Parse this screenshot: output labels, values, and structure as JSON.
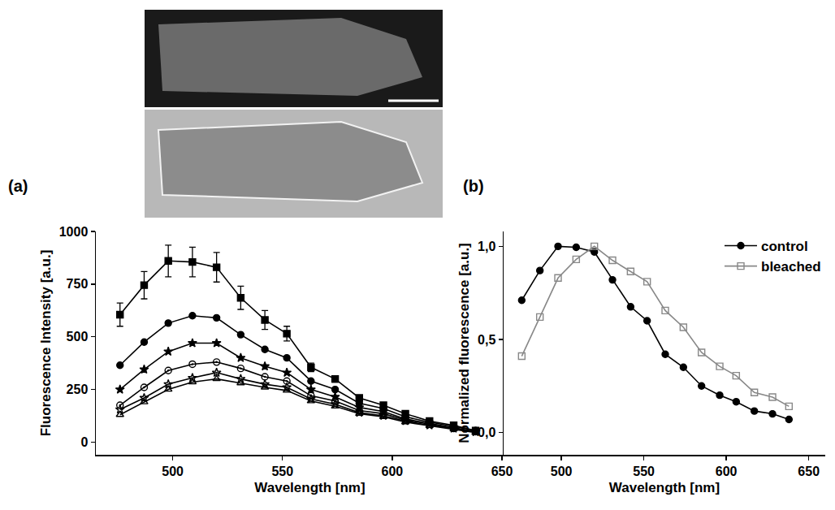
{
  "chart_data": [
    {
      "type": "line",
      "annotations": [
        "(a)"
      ],
      "x_label": "Wavelength [nm]",
      "y_label": "Fluorescence Intensity [a.u.]",
      "x": [
        476,
        487,
        498,
        509,
        520,
        531,
        542,
        552,
        563,
        574,
        585,
        596,
        606,
        617,
        628,
        638
      ],
      "series": [
        {
          "color": "#000000",
          "marker": "square",
          "values": [
            605,
            745,
            860,
            855,
            830,
            685,
            580,
            515,
            355,
            300,
            210,
            175,
            135,
            100,
            80,
            55
          ],
          "errors": [
            55,
            65,
            75,
            70,
            70,
            55,
            45,
            35,
            20,
            15,
            12,
            10,
            8,
            8,
            6,
            6
          ]
        },
        {
          "color": "#000000",
          "marker": "circle",
          "values": [
            365,
            475,
            565,
            600,
            590,
            510,
            440,
            400,
            290,
            250,
            185,
            160,
            120,
            95,
            75,
            55
          ]
        },
        {
          "color": "#000000",
          "marker": "star",
          "values": [
            250,
            345,
            430,
            470,
            470,
            400,
            360,
            330,
            250,
            215,
            165,
            145,
            110,
            90,
            70,
            50
          ]
        },
        {
          "color": "#000000",
          "marker": "circle-open-dot",
          "values": [
            175,
            260,
            340,
            370,
            380,
            350,
            310,
            290,
            220,
            195,
            150,
            135,
            105,
            85,
            65,
            50
          ]
        },
        {
          "color": "#000000",
          "marker": "star-open",
          "values": [
            155,
            210,
            275,
            305,
            330,
            300,
            275,
            260,
            205,
            180,
            140,
            125,
            100,
            80,
            65,
            48
          ]
        },
        {
          "color": "#000000",
          "marker": "triangle-up-open",
          "values": [
            130,
            190,
            250,
            285,
            300,
            280,
            260,
            245,
            195,
            170,
            135,
            120,
            95,
            78,
            62,
            45
          ]
        }
      ],
      "xlim": [
        465,
        660
      ],
      "xticks": [
        500,
        550,
        600,
        650
      ],
      "ylim": [
        -60,
        1000
      ],
      "yticks": [
        0,
        250,
        500,
        750,
        1000
      ],
      "grid": false
    },
    {
      "type": "line",
      "annotations": [
        "(b)"
      ],
      "x_label": "Wavelength [nm]",
      "y_label": "Normalized fluorescence [a.u.]",
      "x": [
        476,
        487,
        498,
        509,
        520,
        531,
        542,
        552,
        563,
        574,
        585,
        596,
        606,
        617,
        628,
        638
      ],
      "series": [
        {
          "name": "control",
          "color": "#000000",
          "marker": "circle",
          "values": [
            0.71,
            0.87,
            1.0,
            0.995,
            0.97,
            0.82,
            0.675,
            0.6,
            0.42,
            0.35,
            0.25,
            0.2,
            0.165,
            0.115,
            0.1,
            0.07
          ]
        },
        {
          "name": "bleached",
          "color": "#888888",
          "marker": "square-open",
          "values": [
            0.41,
            0.62,
            0.83,
            0.93,
            1.0,
            0.925,
            0.865,
            0.81,
            0.655,
            0.565,
            0.43,
            0.355,
            0.305,
            0.215,
            0.19,
            0.14
          ]
        }
      ],
      "xlim": [
        465,
        660
      ],
      "xticks": [
        500,
        550,
        600,
        650
      ],
      "ylim": [
        -0.12,
        1.08
      ],
      "yticks": [
        {
          "value": 0,
          "label": "0,0"
        },
        {
          "value": 0.5,
          "label": "0,5"
        },
        {
          "value": 1,
          "label": "1,0"
        }
      ],
      "legend": "upper right",
      "grid": false
    }
  ]
}
